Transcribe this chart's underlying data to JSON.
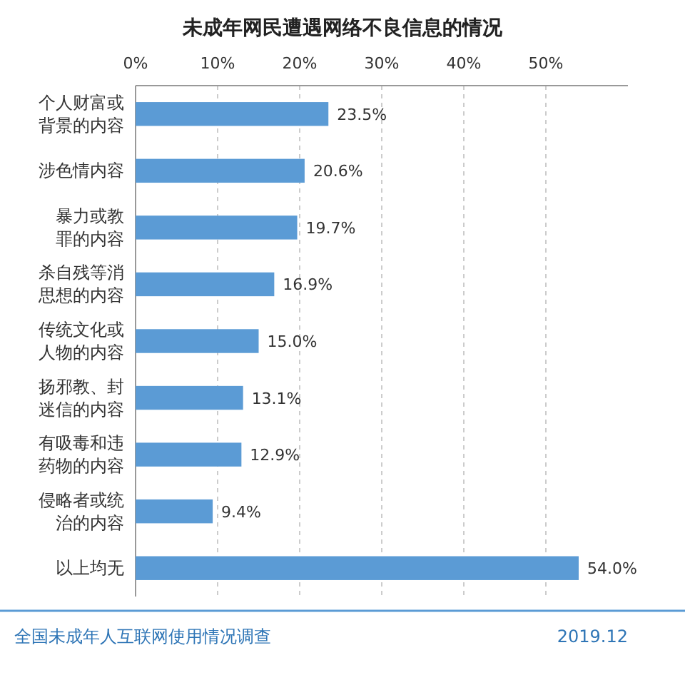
{
  "chart_data": {
    "type": "bar",
    "orientation": "horizontal",
    "title": "未成年网民遭遇网络不良信息的情况",
    "categories": [
      "个人财富或背景的内容",
      "涉色情内容",
      "暴力或教罪的内容",
      "杀自残等消思想的内容",
      "传统文化或人物的内容",
      "扬邪教、封迷信的内容",
      "有吸毒和违药物的内容",
      "侵略者或统治的内容",
      "以上均无"
    ],
    "values": [
      23.5,
      20.6,
      19.7,
      16.9,
      15.0,
      13.1,
      12.9,
      9.4,
      54.0
    ],
    "value_labels": [
      "23.5%",
      "20.6%",
      "19.7%",
      "16.9%",
      "15.0%",
      "13.1%",
      "12.9%",
      "9.4%",
      "54.0%"
    ],
    "color": "#5b9bd5",
    "xlim": [
      0,
      60
    ],
    "xticks": [
      {
        "value": 0,
        "label": "0%"
      },
      {
        "value": 10,
        "label": "10%"
      },
      {
        "value": 20,
        "label": "20%"
      },
      {
        "value": 30,
        "label": "30%"
      },
      {
        "value": 40,
        "label": "40%"
      },
      {
        "value": 50,
        "label": "50%"
      }
    ],
    "grid": "x",
    "annotations": [
      "全国未成年人互联网使用情况调查",
      "2019.12"
    ]
  }
}
